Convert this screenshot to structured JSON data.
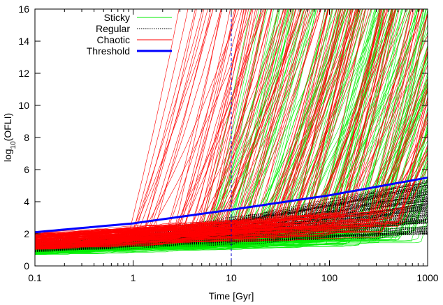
{
  "chart_data": {
    "type": "line",
    "xlabel": "Time [Gyr]",
    "ylabel_prefix": "log",
    "ylabel_sub": "10",
    "ylabel_suffix": "(OFLI)",
    "x_scale": "log",
    "xlim": [
      0.1,
      1000
    ],
    "ylim": [
      0,
      16
    ],
    "x_ticks": [
      0.1,
      1,
      10,
      100,
      1000
    ],
    "x_tick_labels": [
      "0.1",
      "1",
      "10",
      "100",
      "1000"
    ],
    "y_ticks": [
      0,
      2,
      4,
      6,
      8,
      10,
      12,
      14,
      16
    ],
    "y_tick_labels": [
      "0",
      "2",
      "4",
      "6",
      "8",
      "10",
      "12",
      "14",
      "16"
    ],
    "grid": false,
    "legend_position": "top-left",
    "vertical_marker": {
      "x": 10,
      "style": "dashed",
      "color": "#0000cc"
    },
    "series": [
      {
        "name": "Sticky",
        "color": "#00ee00",
        "style": "thin-bundle",
        "count": 160,
        "start_range": [
          0.7,
          1.4
        ],
        "linear_growth_per_decade": [
          0.1,
          0.4
        ],
        "divergence_x_range": [
          4,
          1000
        ]
      },
      {
        "name": "Regular",
        "color": "#000000",
        "style": "dotted-bundle",
        "count": 140,
        "start_range": [
          0.9,
          1.5
        ],
        "linear_growth_per_decade": [
          0.15,
          0.8
        ],
        "value_at_1000_range": [
          2.0,
          5.3
        ]
      },
      {
        "name": "Chaotic",
        "color": "#ff0000",
        "style": "thin-bundle",
        "count": 160,
        "start_range": [
          1.0,
          2.0
        ],
        "linear_growth_per_decade": [
          0.2,
          0.5
        ],
        "divergence_x_range": [
          0.8,
          600
        ]
      },
      {
        "name": "Threshold",
        "color": "#0000ff",
        "style": "thick",
        "x": [
          0.1,
          1,
          10,
          100,
          1000
        ],
        "y": [
          2.1,
          2.65,
          3.5,
          4.4,
          5.5
        ]
      }
    ]
  }
}
